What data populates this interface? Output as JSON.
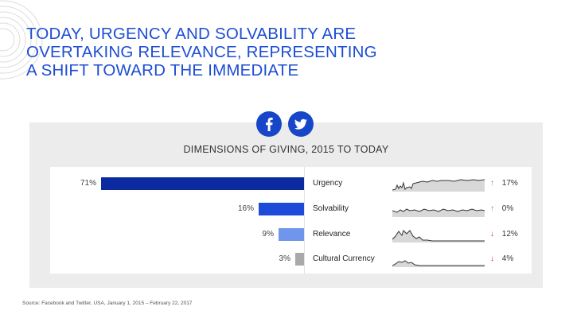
{
  "header": {
    "title_lines": [
      "TODAY, URGENCY AND SOLVABILITY ARE",
      "OVERTAKING RELEVANCE, REPRESENTING",
      "A SHIFT TOWARD THE IMMEDIATE"
    ]
  },
  "social": {
    "icons": [
      "facebook-icon",
      "twitter-icon"
    ],
    "color": "#1846c8"
  },
  "chart_data": {
    "type": "bar",
    "title": "DIMENSIONS OF GIVING, 2015 TO TODAY",
    "categories": [
      "Urgency",
      "Solvability",
      "Relevance",
      "Cultural Currency"
    ],
    "values": [
      71,
      16,
      9,
      3
    ],
    "value_labels": [
      "71%",
      "16%",
      "9%",
      "3%"
    ],
    "bar_colors": [
      "#0c2aa0",
      "#1d4ad8",
      "#6f96ec",
      "#a9a9a9"
    ],
    "change_labels": [
      "17%",
      "0%",
      "12%",
      "4%"
    ],
    "change_directions": [
      "up",
      "up",
      "down",
      "down"
    ],
    "xlim": [
      0,
      71
    ]
  },
  "footer": {
    "source": "Source: Facebook and Twitter, USA, January 1, 2015 – February 22, 2017"
  }
}
